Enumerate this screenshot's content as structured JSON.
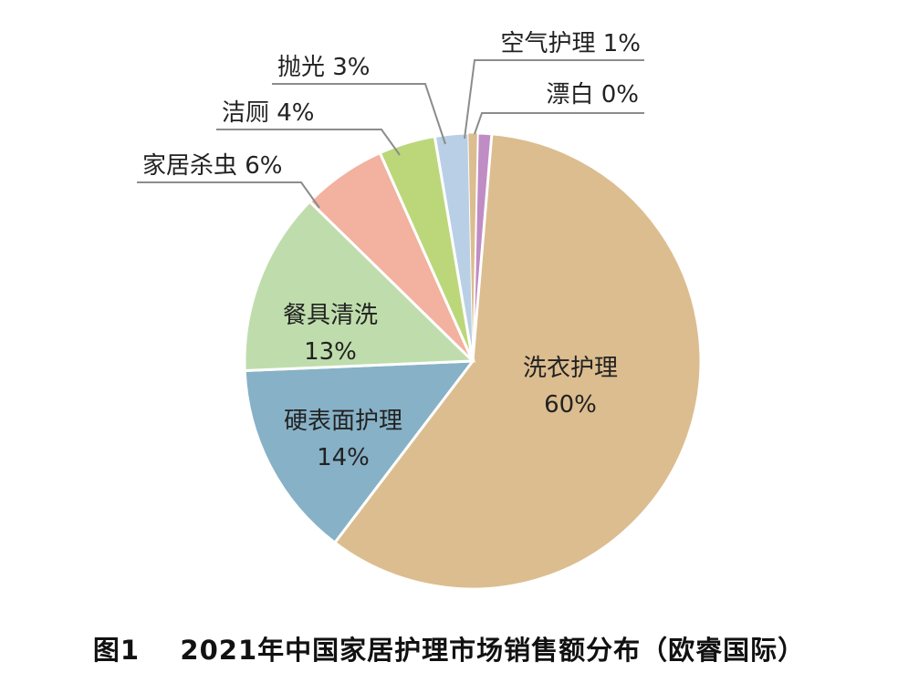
{
  "caption": {
    "figure_no": "图1",
    "title": "2021年中国家居护理市场销售额分布（欧睿国际）"
  },
  "chart_data": {
    "type": "pie",
    "title": "2021年中国家居护理市场销售额分布（欧睿国际）",
    "unit": "%",
    "slices": [
      {
        "label": "洗衣护理",
        "value": 60,
        "display": "60%",
        "color": "#dcbd8f"
      },
      {
        "label": "硬表面护理",
        "value": 14,
        "display": "14%",
        "color": "#87b1c6"
      },
      {
        "label": "餐具清洗",
        "value": 13,
        "display": "13%",
        "color": "#bfddac"
      },
      {
        "label": "家居杀虫",
        "value": 6,
        "display": "6%",
        "color": "#f3b1a0"
      },
      {
        "label": "洁厕",
        "value": 4,
        "display": "4%",
        "color": "#bcd77a"
      },
      {
        "label": "抛光",
        "value": 3,
        "display": "3%",
        "color": "#b9cfe5"
      },
      {
        "label": "空气护理",
        "value": 1,
        "display": "1%",
        "color": "#c08cc4"
      },
      {
        "label": "漂白",
        "value": 0,
        "display": "0%",
        "color": "#dcbd8f"
      }
    ]
  }
}
